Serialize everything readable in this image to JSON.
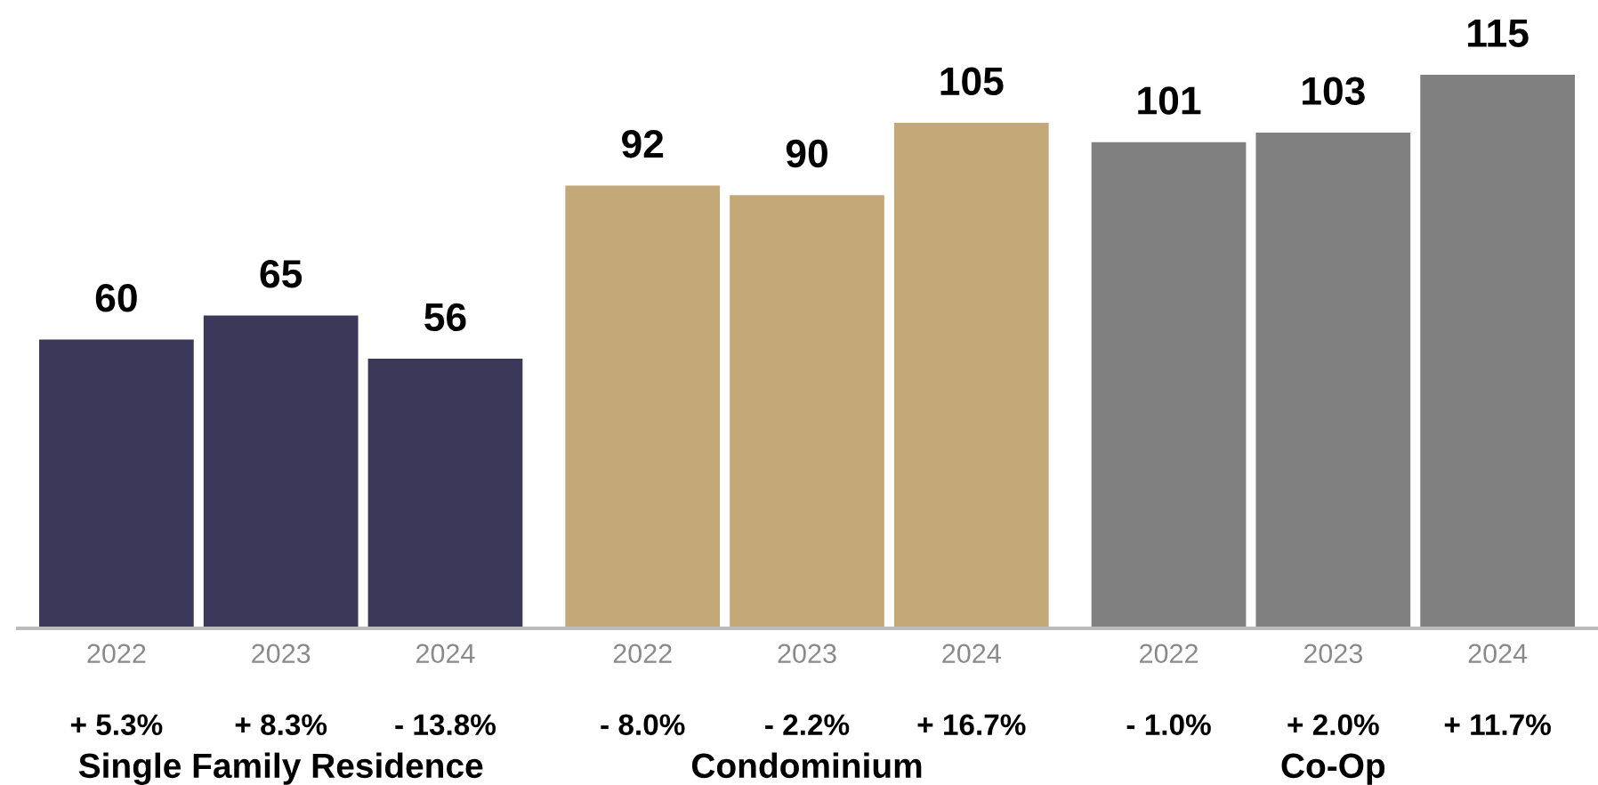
{
  "chart_data": [
    {
      "type": "bar",
      "xlabel": "Single Family Residence",
      "categories": [
        "2022",
        "2023",
        "2024"
      ],
      "values": [
        60,
        65,
        56
      ],
      "color": "#3b3859",
      "data_labels": true,
      "annotations": [
        "+ 5.3%",
        "+ 8.3%",
        "- 13.8%"
      ]
    },
    {
      "type": "bar",
      "xlabel": "Condominium",
      "categories": [
        "2022",
        "2023",
        "2024"
      ],
      "values": [
        92,
        90,
        105
      ],
      "color": "#c3a878",
      "data_labels": true,
      "annotations": [
        "- 8.0%",
        "- 2.2%",
        "+ 16.7%"
      ]
    },
    {
      "type": "bar",
      "xlabel": "Co-Op",
      "categories": [
        "2022",
        "2023",
        "2024"
      ],
      "values": [
        101,
        103,
        115
      ],
      "color": "#808080",
      "data_labels": true,
      "annotations": [
        "- 1.0%",
        "+ 2.0%",
        "+ 11.7%"
      ]
    }
  ]
}
